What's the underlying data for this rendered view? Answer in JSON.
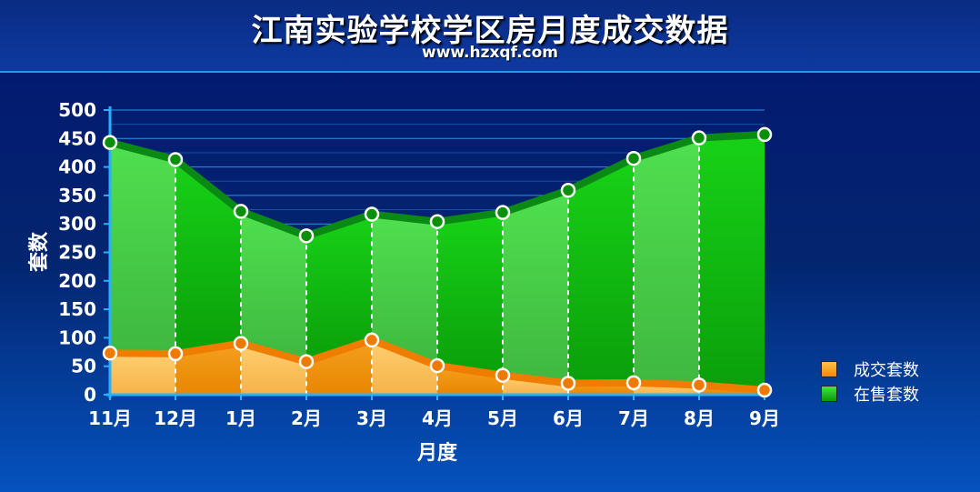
{
  "title": "江南实验学校学区房月度成交数据",
  "subtitle": "www.hzxqf.com",
  "chart_data": {
    "type": "area",
    "title": "江南实验学校学区房月度成交数据",
    "subtitle": "www.hzxqf.com",
    "xlabel": "月度",
    "ylabel": "套数",
    "ylim": [
      0,
      500
    ],
    "yticks": [
      "0",
      "50",
      "100",
      "150",
      "200",
      "250",
      "300",
      "350",
      "400",
      "450",
      "500"
    ],
    "categories": [
      "11月",
      "12月",
      "1月",
      "2月",
      "3月",
      "4月",
      "5月",
      "6月",
      "7月",
      "8月",
      "9月"
    ],
    "grid": true,
    "legend_position": "right",
    "series": [
      {
        "name": "成交套数",
        "color": "#f08a00",
        "values": [
          73,
          72,
          90,
          58,
          96,
          51,
          34,
          20,
          21,
          17,
          8
        ]
      },
      {
        "name": "在售套数",
        "color": "#0fbf0f",
        "values": [
          443,
          413,
          322,
          279,
          317,
          304,
          320,
          359,
          415,
          451,
          457
        ]
      }
    ]
  },
  "legend": [
    {
      "label": "成交套数",
      "color": "#f39a12"
    },
    {
      "label": "在售套数",
      "color": "#1cbd1c"
    }
  ]
}
